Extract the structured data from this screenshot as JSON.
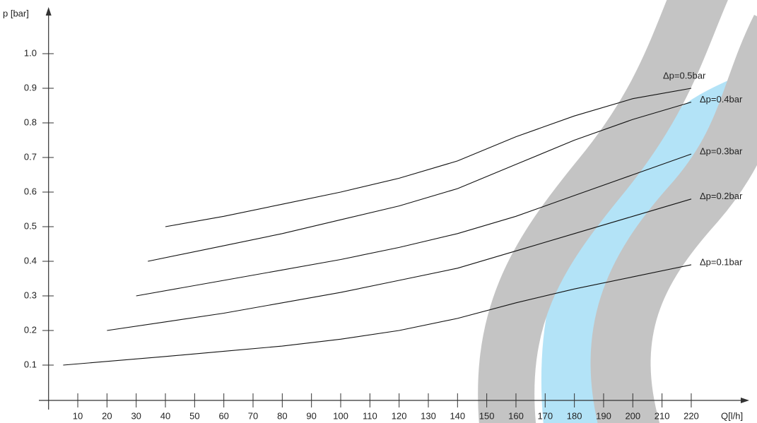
{
  "chart_data": {
    "type": "line",
    "xlabel": "Q[l/h]",
    "ylabel": "p [bar]",
    "xlim": [
      0,
      240
    ],
    "ylim": [
      0,
      1.13
    ],
    "xticks": [
      10,
      20,
      30,
      40,
      50,
      60,
      70,
      80,
      90,
      100,
      110,
      120,
      130,
      140,
      150,
      160,
      170,
      180,
      190,
      200,
      210,
      220
    ],
    "yticks": [
      0.1,
      0.2,
      0.3,
      0.4,
      0.5,
      0.6,
      0.7,
      0.8,
      0.9,
      {
        "value": 1,
        "label": "1.0"
      }
    ],
    "series": [
      {
        "name": "Δp=0.5bar",
        "color": "#111111",
        "x": [
          40,
          60,
          80,
          100,
          120,
          140,
          160,
          180,
          200,
          220
        ],
        "values": [
          0.5,
          0.53,
          0.565,
          0.6,
          0.64,
          0.69,
          0.76,
          0.82,
          0.87,
          0.9
        ]
      },
      {
        "name": "Δp=0.4bar",
        "color": "#111111",
        "x": [
          34,
          60,
          80,
          100,
          120,
          140,
          160,
          180,
          200,
          220
        ],
        "values": [
          0.4,
          0.445,
          0.48,
          0.52,
          0.56,
          0.61,
          0.68,
          0.75,
          0.81,
          0.86
        ]
      },
      {
        "name": "Δp=0.3bar",
        "color": "#111111",
        "x": [
          30,
          60,
          80,
          100,
          120,
          140,
          160,
          180,
          200,
          220
        ],
        "values": [
          0.3,
          0.345,
          0.375,
          0.405,
          0.44,
          0.48,
          0.53,
          0.59,
          0.65,
          0.71
        ]
      },
      {
        "name": "Δp=0.2bar",
        "color": "#111111",
        "x": [
          20,
          40,
          60,
          80,
          100,
          120,
          140,
          160,
          180,
          200,
          220
        ],
        "values": [
          0.2,
          0.225,
          0.25,
          0.28,
          0.31,
          0.345,
          0.38,
          0.43,
          0.48,
          0.53,
          0.58
        ]
      },
      {
        "name": "Δp=0.1bar",
        "color": "#111111",
        "x": [
          5,
          40,
          60,
          80,
          100,
          120,
          140,
          160,
          180,
          200,
          220
        ],
        "values": [
          0.1,
          0.125,
          0.14,
          0.155,
          0.175,
          0.2,
          0.235,
          0.28,
          0.32,
          0.355,
          0.39
        ]
      }
    ]
  }
}
